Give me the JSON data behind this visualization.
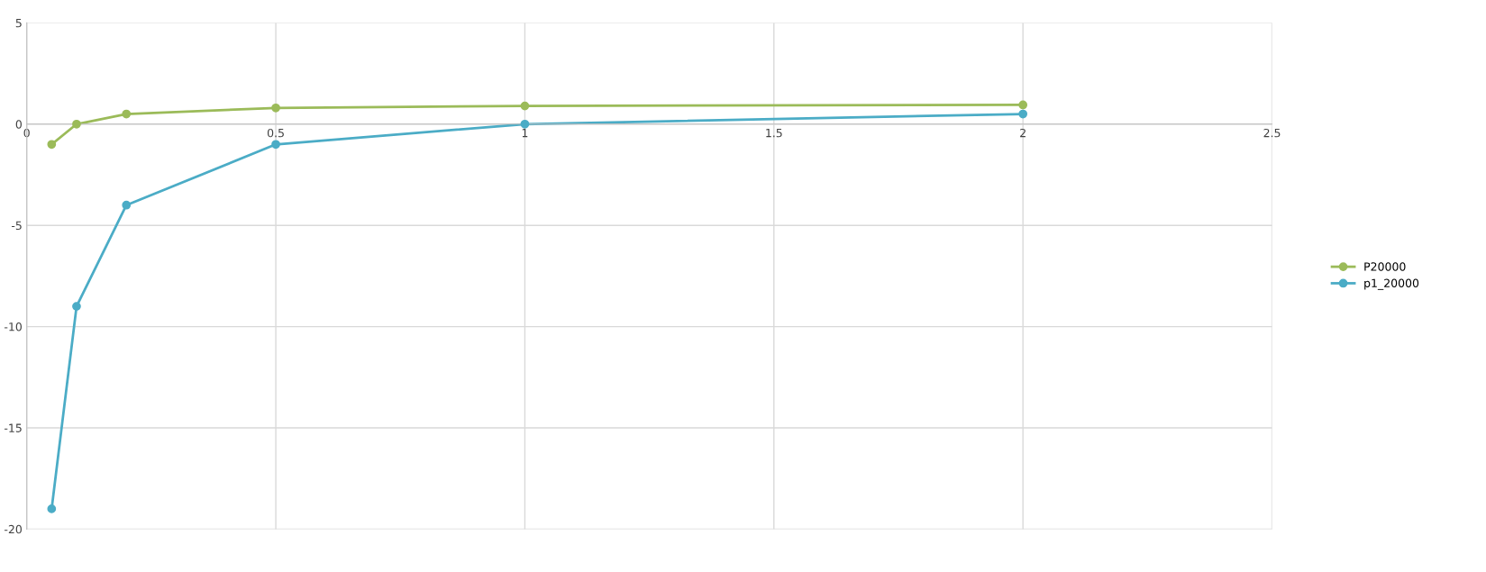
{
  "chart_data": {
    "type": "line",
    "series": [
      {
        "name": "P20000",
        "color": "#9bbb59",
        "x": [
          0.05,
          0.1,
          0.2,
          0.5,
          1,
          2
        ],
        "values": [
          -1,
          0,
          0.5,
          0.8,
          0.9,
          0.95
        ]
      },
      {
        "name": "p1_20000",
        "color": "#4bacc6",
        "x": [
          0.05,
          0.1,
          0.2,
          0.5,
          1,
          2
        ],
        "values": [
          -19,
          -9,
          -4,
          -1,
          0,
          0.5
        ]
      }
    ],
    "xlim": [
      0,
      2.5
    ],
    "xticks": [
      0,
      0.5,
      1,
      1.5,
      2,
      2.5
    ],
    "ylim": [
      -20,
      5
    ],
    "yticks": [
      -20,
      -15,
      -10,
      -5,
      0,
      5
    ],
    "grid": true,
    "legend": "right",
    "marker": "circle",
    "line_style": "solid"
  }
}
